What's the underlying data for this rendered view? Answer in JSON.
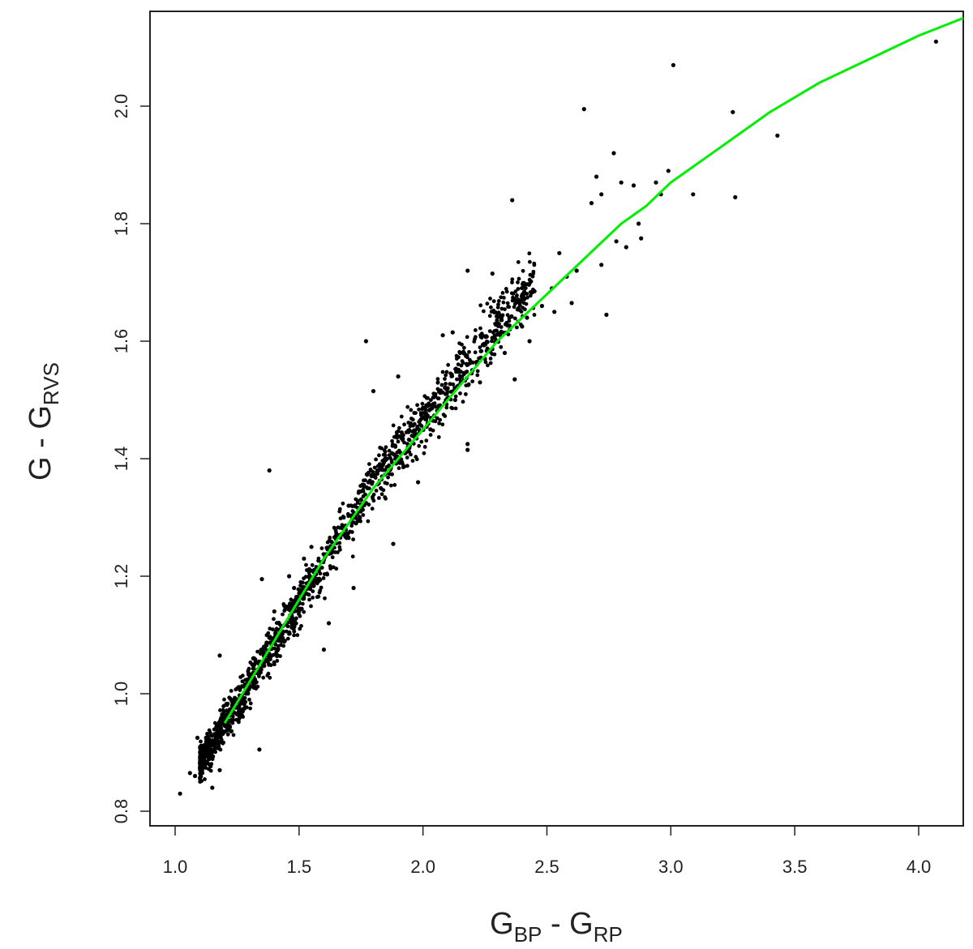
{
  "chart_data": {
    "type": "scatter",
    "title": "",
    "xlabel": {
      "main": "G",
      "sub1": "BP",
      "mid": " - G",
      "sub2": "RP"
    },
    "ylabel": {
      "main": "G - G",
      "sub": "RVS"
    },
    "xlim": [
      0.9,
      4.2
    ],
    "ylim": [
      0.78,
      2.16
    ],
    "x_ticks": [
      1.0,
      1.5,
      2.0,
      2.5,
      3.0,
      3.5,
      4.0
    ],
    "x_tick_labels": [
      "1.0",
      "1.5",
      "2.0",
      "2.5",
      "3.0",
      "3.5",
      "4.0"
    ],
    "y_ticks": [
      0.8,
      1.0,
      1.2,
      1.4,
      1.6,
      1.8,
      2.0
    ],
    "y_tick_labels": [
      "0.8",
      "1.0",
      "1.2",
      "1.4",
      "1.6",
      "1.8",
      "2.0"
    ],
    "grid": false,
    "legend": "none",
    "series": [
      {
        "kind": "fit-line",
        "color": "#00ee00",
        "x": [
          1.2,
          1.3,
          1.4,
          1.5,
          1.6,
          1.7,
          1.8,
          1.9,
          2.0,
          2.1,
          2.2,
          2.3,
          2.4,
          2.5,
          2.6,
          2.7,
          2.8,
          2.9,
          3.0,
          3.2,
          3.4,
          3.6,
          3.8,
          4.0,
          4.2
        ],
        "y": [
          0.95,
          1.02,
          1.09,
          1.16,
          1.23,
          1.29,
          1.35,
          1.4,
          1.45,
          1.5,
          1.55,
          1.6,
          1.64,
          1.68,
          1.72,
          1.76,
          1.8,
          1.83,
          1.87,
          1.93,
          1.99,
          2.04,
          2.08,
          2.12,
          2.15
        ]
      },
      {
        "kind": "points",
        "color": "#000000",
        "points": [
          [
            1.02,
            0.83
          ],
          [
            1.06,
            0.865
          ],
          [
            1.08,
            0.86
          ],
          [
            1.15,
            0.84
          ],
          [
            1.12,
            0.88
          ],
          [
            1.18,
            0.87
          ],
          [
            1.09,
            0.925
          ],
          [
            1.13,
            0.905
          ],
          [
            1.17,
            0.935
          ],
          [
            1.22,
            0.945
          ],
          [
            1.25,
            0.965
          ],
          [
            1.28,
            0.975
          ],
          [
            1.18,
            1.065
          ],
          [
            1.35,
            1.195
          ],
          [
            1.38,
            1.38
          ],
          [
            1.4,
            1.14
          ],
          [
            1.45,
            1.12
          ],
          [
            1.5,
            1.14
          ],
          [
            1.34,
            0.905
          ],
          [
            1.6,
            1.075
          ],
          [
            1.62,
            1.12
          ],
          [
            1.72,
            1.18
          ],
          [
            1.77,
            1.6
          ],
          [
            1.8,
            1.515
          ],
          [
            1.9,
            1.54
          ],
          [
            1.88,
            1.255
          ],
          [
            1.98,
            1.36
          ],
          [
            2.05,
            1.51
          ],
          [
            2.08,
            1.61
          ],
          [
            2.12,
            1.615
          ],
          [
            2.15,
            1.58
          ],
          [
            2.18,
            1.425
          ],
          [
            2.18,
            1.415
          ],
          [
            2.18,
            1.72
          ],
          [
            2.28,
            1.715
          ],
          [
            2.36,
            1.84
          ],
          [
            2.37,
            1.535
          ],
          [
            2.4,
            1.625
          ],
          [
            2.45,
            1.685
          ],
          [
            2.55,
            1.75
          ],
          [
            2.6,
            1.665
          ],
          [
            2.62,
            1.72
          ],
          [
            2.65,
            1.995
          ],
          [
            2.68,
            1.835
          ],
          [
            2.7,
            1.88
          ],
          [
            2.72,
            1.85
          ],
          [
            2.72,
            1.73
          ],
          [
            2.74,
            1.645
          ],
          [
            2.77,
            1.92
          ],
          [
            2.78,
            1.77
          ],
          [
            2.8,
            1.87
          ],
          [
            2.82,
            1.76
          ],
          [
            2.85,
            1.865
          ],
          [
            2.87,
            1.8
          ],
          [
            2.88,
            1.775
          ],
          [
            2.94,
            1.87
          ],
          [
            2.96,
            1.85
          ],
          [
            2.99,
            1.89
          ],
          [
            3.01,
            2.07
          ],
          [
            3.09,
            1.85
          ],
          [
            3.25,
            1.99
          ],
          [
            3.26,
            1.845
          ],
          [
            3.43,
            1.95
          ],
          [
            4.07,
            2.11
          ],
          [
            1.52,
            1.23
          ],
          [
            1.55,
            1.25
          ],
          [
            1.58,
            1.21
          ],
          [
            1.65,
            1.27
          ],
          [
            1.68,
            1.3
          ],
          [
            1.7,
            1.32
          ],
          [
            1.75,
            1.33
          ],
          [
            1.78,
            1.36
          ],
          [
            1.82,
            1.38
          ],
          [
            1.85,
            1.4
          ],
          [
            1.92,
            1.44
          ],
          [
            1.95,
            1.46
          ],
          [
            2.0,
            1.47
          ],
          [
            2.02,
            1.49
          ],
          [
            2.1,
            1.52
          ],
          [
            2.2,
            1.55
          ],
          [
            2.25,
            1.57
          ],
          [
            2.3,
            1.6
          ],
          [
            2.35,
            1.62
          ],
          [
            2.42,
            1.64
          ],
          [
            2.48,
            1.66
          ],
          [
            2.52,
            1.69
          ],
          [
            2.58,
            1.71
          ],
          [
            1.48,
            1.18
          ],
          [
            1.42,
            1.1
          ],
          [
            1.3,
            1.02
          ],
          [
            1.27,
            0.99
          ],
          [
            1.32,
            1.05
          ],
          [
            1.36,
            1.08
          ],
          [
            1.44,
            1.15
          ],
          [
            1.46,
            1.2
          ],
          [
            1.56,
            1.19
          ],
          [
            1.63,
            1.24
          ],
          [
            1.73,
            1.29
          ],
          [
            1.83,
            1.35
          ],
          [
            1.93,
            1.41
          ],
          [
            2.03,
            1.45
          ],
          [
            2.13,
            1.5
          ],
          [
            2.23,
            1.53
          ],
          [
            2.33,
            1.58
          ],
          [
            2.43,
            1.6
          ],
          [
            2.53,
            1.65
          ]
        ],
        "cloud_note": ""
      }
    ]
  }
}
